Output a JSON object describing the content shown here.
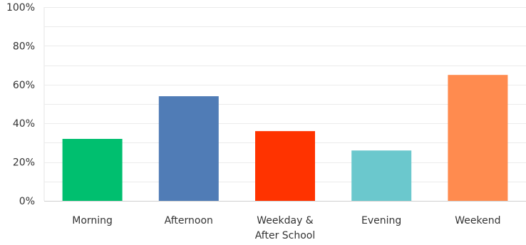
{
  "chart_data": {
    "type": "bar",
    "categories": [
      "Morning",
      "Afternoon",
      "Weekday & After School",
      "Evening",
      "Weekend"
    ],
    "category_label_lines": [
      [
        "Morning"
      ],
      [
        "Afternoon"
      ],
      [
        "Weekday &",
        "After School"
      ],
      [
        "Evening"
      ],
      [
        "Weekend"
      ]
    ],
    "values": [
      32,
      54,
      36,
      26,
      65
    ],
    "colors": [
      "#00bf6f",
      "#507cb6",
      "#ff3300",
      "#6bc8cd",
      "#ff8b4f"
    ],
    "ylim": [
      0,
      100
    ],
    "yticks": [
      0,
      20,
      40,
      60,
      80,
      100
    ],
    "ytick_labels": [
      "0%",
      "20%",
      "40%",
      "60%",
      "80%",
      "100%"
    ],
    "grid": true,
    "title": "",
    "xlabel": "",
    "ylabel": ""
  }
}
